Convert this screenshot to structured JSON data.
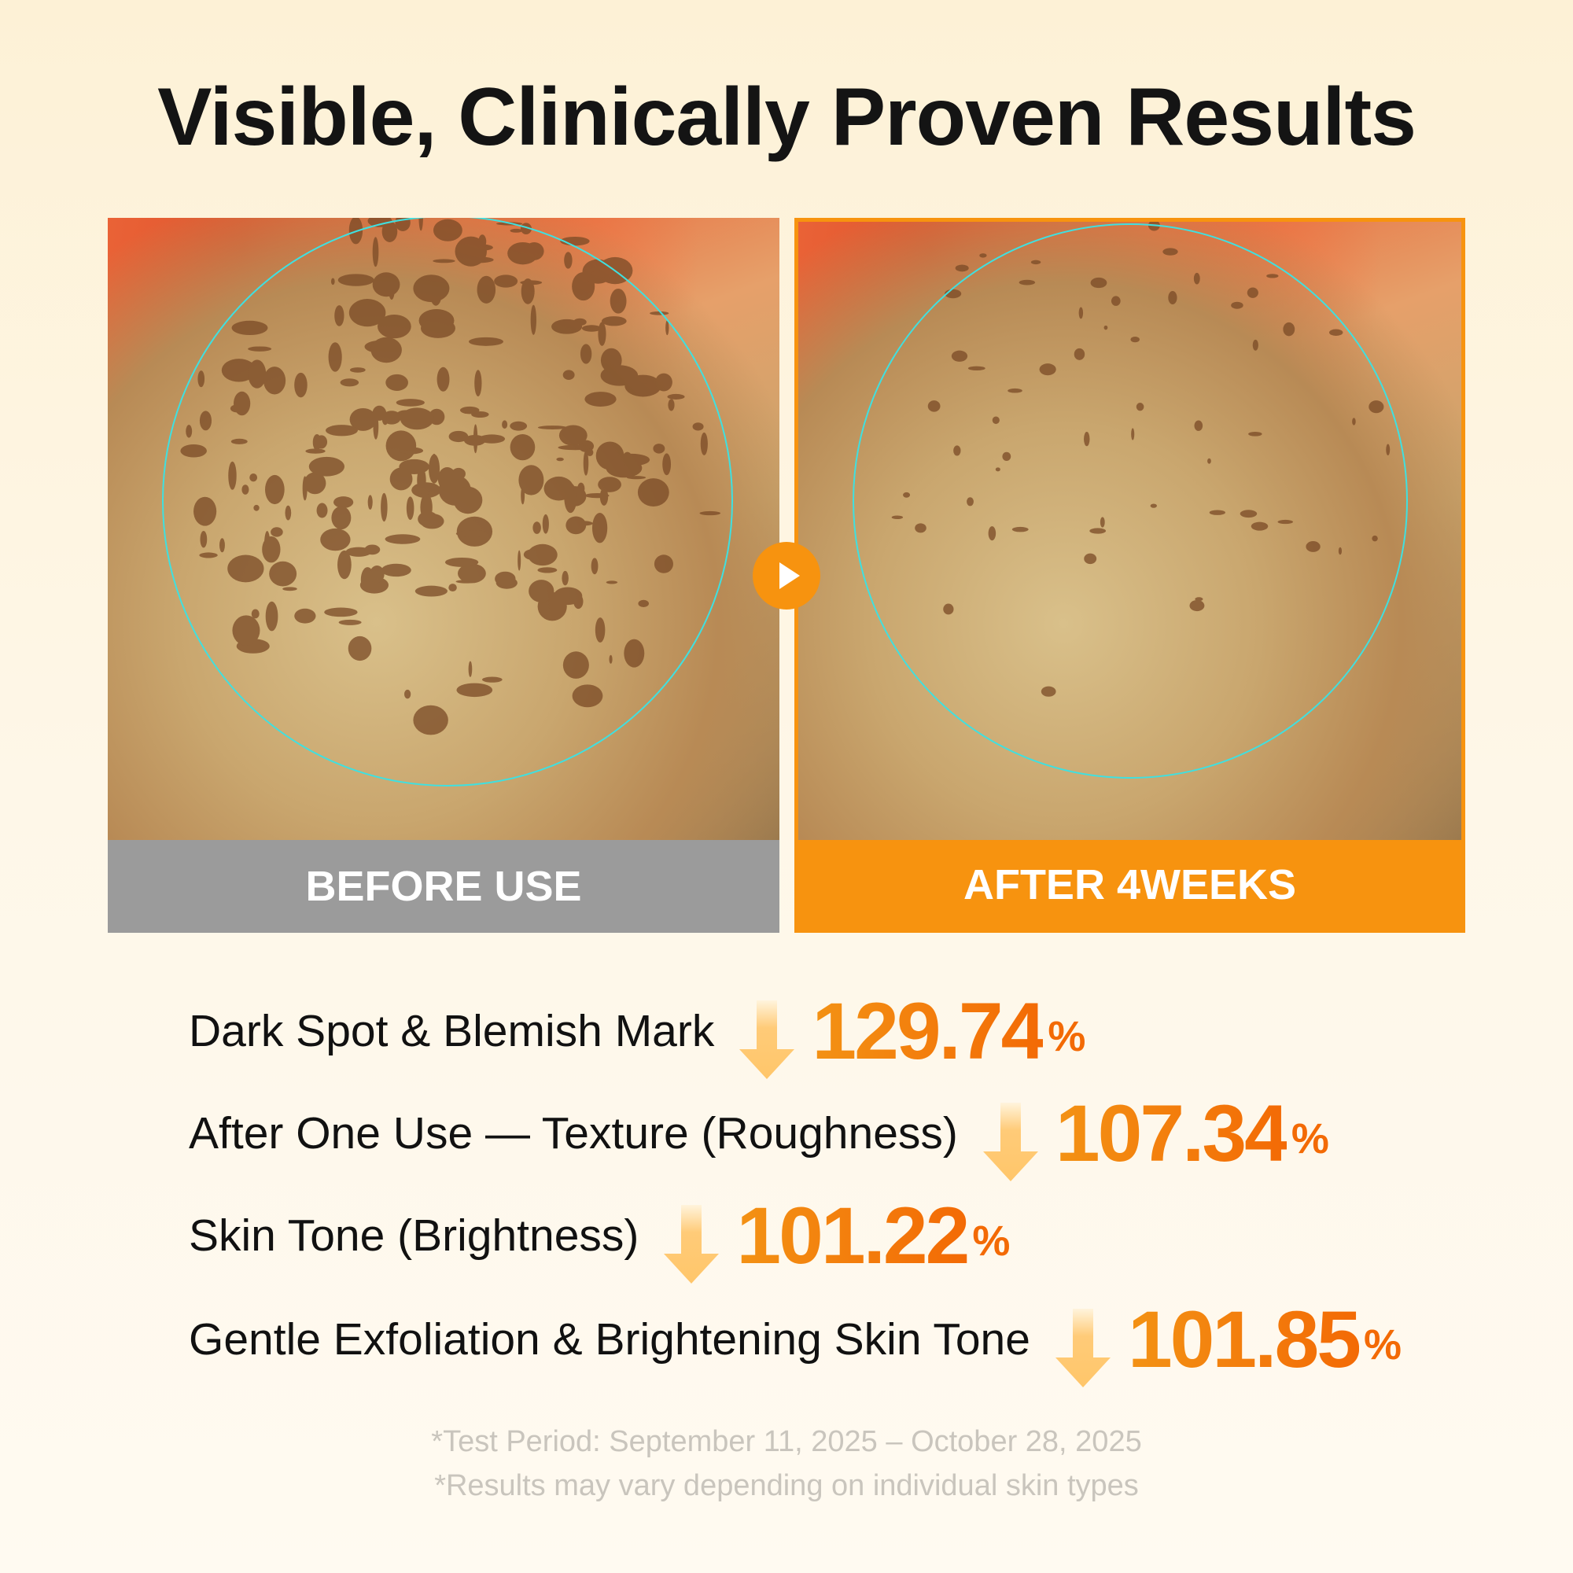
{
  "title": "Visible, Clinically Proven Results",
  "colors": {
    "accent": "#f7930f",
    "number_start": "#f39214",
    "number_end": "#f36a05",
    "before_bar": "#9b9b9b",
    "circle": "#3fe0e0"
  },
  "panels": {
    "before": {
      "label": "BEFORE USE"
    },
    "after": {
      "label": "AFTER 4WEEKS"
    },
    "play_icon": "play-icon"
  },
  "results": [
    {
      "label": "Dark Spot & Blemish Mark",
      "value": "129.74",
      "unit": "%",
      "icon": "arrow-down-icon"
    },
    {
      "label": "After One Use — Texture (Roughness)",
      "value": "107.34",
      "unit": "%",
      "icon": "arrow-down-icon"
    },
    {
      "label": "Skin Tone (Brightness)",
      "value": "101.22",
      "unit": "%",
      "icon": "arrow-down-icon"
    },
    {
      "label": "Gentle Exfoliation & Brightening Skin Tone",
      "value": "101.85",
      "unit": "%",
      "icon": "arrow-down-icon"
    }
  ],
  "footnotes": [
    "*Test Period: September 11, 2025 – October 28, 2025",
    "*Results may vary depending on individual skin types"
  ]
}
